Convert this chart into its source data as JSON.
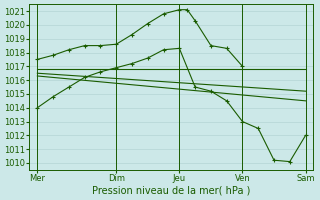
{
  "bg_color": "#cce8e8",
  "grid_color": "#b8d8d8",
  "line_color": "#1a5c00",
  "xlabel": "Pression niveau de la mer( hPa )",
  "ylim": [
    1009.5,
    1021.5
  ],
  "yticks": [
    1010,
    1011,
    1012,
    1013,
    1014,
    1015,
    1016,
    1017,
    1018,
    1019,
    1020,
    1021
  ],
  "xlim": [
    -0.5,
    17.5
  ],
  "xtick_labels": [
    "Mer",
    "Dim",
    "Jeu",
    "Ven",
    "Sam"
  ],
  "xtick_positions": [
    0,
    5,
    9,
    13,
    17
  ],
  "vlines": [
    0,
    5,
    9,
    13,
    17
  ],
  "series": [
    {
      "x": [
        0,
        1,
        2,
        3,
        4,
        5,
        6,
        7,
        8,
        9,
        9.5,
        10,
        11,
        12,
        13
      ],
      "y": [
        1017.5,
        1017.8,
        1018.2,
        1018.5,
        1018.5,
        1018.6,
        1019.3,
        1020.1,
        1020.8,
        1021.1,
        1021.1,
        1020.3,
        1018.5,
        1018.3,
        1017.0
      ],
      "marker": true
    },
    {
      "x": [
        0,
        1,
        2,
        3,
        4,
        5,
        6,
        7,
        8,
        9,
        10,
        11,
        12,
        13,
        14,
        15,
        16,
        17
      ],
      "y": [
        1014.0,
        1014.8,
        1015.5,
        1016.2,
        1016.6,
        1016.9,
        1017.2,
        1017.6,
        1018.2,
        1018.3,
        1015.5,
        1015.2,
        1014.5,
        1013.0,
        1012.5,
        1010.2,
        1010.1,
        1012.0
      ],
      "marker": true
    },
    {
      "x": [
        0,
        17
      ],
      "y": [
        1016.8,
        1016.8
      ],
      "marker": false
    },
    {
      "x": [
        0,
        17
      ],
      "y": [
        1016.5,
        1015.2
      ],
      "marker": false
    },
    {
      "x": [
        0,
        17
      ],
      "y": [
        1016.3,
        1014.5
      ],
      "marker": false
    }
  ]
}
